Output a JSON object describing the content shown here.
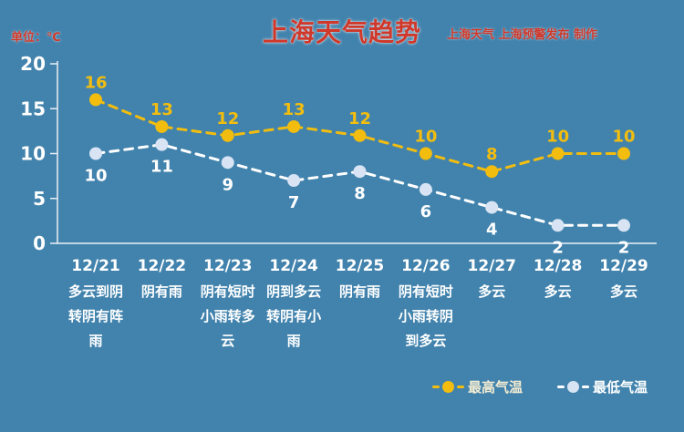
{
  "colors": {
    "background": "#4283ad",
    "header_red": "#cf382a",
    "high_series": "#f2bd0e",
    "low_series_line": "#ffffff",
    "low_marker_fill": "#d8e4f4",
    "axis": "#e9eff5",
    "tick_label": "#ffffff"
  },
  "header": {
    "unit_label": "单位：℃",
    "title": "上海天气趋势",
    "credit": "上海天气 上海预警发布 制作"
  },
  "chart_data": {
    "type": "line",
    "title": "上海天气趋势",
    "ylabel": "单位：℃",
    "ylim": [
      0,
      20
    ],
    "yticks": [
      20,
      15,
      10,
      5,
      0
    ],
    "grid": false,
    "line_style": "dashed",
    "legend_position": "bottom-right",
    "categories": [
      "12/21",
      "12/22",
      "12/23",
      "12/24",
      "12/25",
      "12/26",
      "12/27",
      "12/28",
      "12/29"
    ],
    "weather": [
      "多云到阴转阴有阵雨",
      "阴有雨",
      "阴有短时小雨转多云",
      "阴到多云转阴有小雨",
      "阴有雨",
      "阴有短时小雨转阴到多云",
      "多云",
      "多云",
      "多云"
    ],
    "series": [
      {
        "name": "最高气温",
        "values": [
          16,
          13,
          12,
          13,
          12,
          10,
          8,
          10,
          10
        ]
      },
      {
        "name": "最低气温",
        "values": [
          10,
          11,
          9,
          7,
          8,
          6,
          4,
          2,
          2
        ]
      }
    ]
  },
  "legend": {
    "high_label": "最高气温",
    "low_label": "最低气温"
  }
}
